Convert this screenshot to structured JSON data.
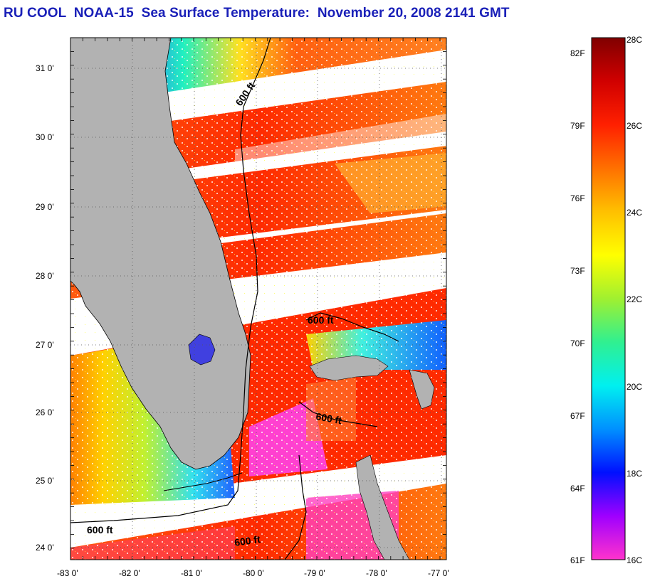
{
  "title": "RU COOL  NOAA-15  Sea Surface Temperature:  November 20, 2008 2141 GMT",
  "map": {
    "x_ticks": [
      "-83 0'",
      "-82 0'",
      "-81 0'",
      "-80 0'",
      "-79 0'",
      "-78 0'",
      "-77 0'"
    ],
    "y_ticks": [
      "31 0'",
      "30 0'",
      "29 0'",
      "28 0'",
      "27 0'",
      "26 0'",
      "25 0'",
      "24 0'"
    ],
    "contour_labels": [
      "600 ft",
      "600 ft",
      "600 ft",
      "600 ft",
      "600 ft"
    ],
    "land_color": "#b2b2b2",
    "grid": "dotted"
  },
  "colorbar": {
    "celsius_labels": [
      "28C",
      "26C",
      "24C",
      "22C",
      "20C",
      "18C",
      "16C"
    ],
    "fahrenheit_labels": [
      "82F",
      "79F",
      "76F",
      "73F",
      "70F",
      "67F",
      "64F",
      "61F"
    ],
    "colors": [
      "#ff33cc",
      "#a000ff",
      "#0010ff",
      "#0090ff",
      "#00f0f0",
      "#30f090",
      "#a0f030",
      "#ffff00",
      "#ffc000",
      "#ff7000",
      "#ff2000",
      "#d00000",
      "#800000"
    ]
  }
}
